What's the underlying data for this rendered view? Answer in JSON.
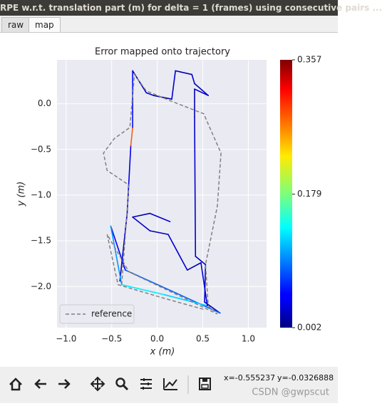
{
  "window": {
    "title": "RPE w.r.t. translation part (m) for delta = 1 (frames) using consecutive pairs ...",
    "tabs": [
      "raw",
      "map"
    ]
  },
  "chart_data": {
    "type": "line",
    "title": "Error mapped onto trajectory",
    "xlabel": "x (m)",
    "ylabel": "y (m)",
    "xlim": [
      -1.1,
      1.2
    ],
    "ylim": [
      -2.45,
      0.48
    ],
    "xticks": [
      {
        "value": -1.0,
        "label": "−1.0"
      },
      {
        "value": -0.5,
        "label": "−0.5"
      },
      {
        "value": 0.0,
        "label": "0.0"
      },
      0.5,
      {
        "value": 1.0,
        "label": "1.0"
      }
    ],
    "yticks": [
      {
        "value": 0.0,
        "label": "0.0"
      },
      {
        "value": -0.5,
        "label": "−0.5"
      },
      {
        "value": -1.0,
        "label": "−1.0"
      },
      {
        "value": -1.5,
        "label": "−1.5"
      },
      {
        "value": -2.0,
        "label": "−2.0"
      }
    ],
    "grid": true,
    "legend": "lower left",
    "series": [
      {
        "name": "reference",
        "color": "#808080",
        "linestyle": "dashed",
        "x": [
          -0.39,
          -0.31,
          -0.55,
          -0.59,
          -0.47,
          -0.3,
          -0.25,
          -0.12,
          0.2,
          0.51,
          0.7,
          0.66,
          0.53,
          0.56,
          0.66,
          -0.31,
          -0.55,
          -0.43,
          0.08,
          0.51
        ],
        "y": [
          -1.98,
          -0.89,
          -0.73,
          -0.54,
          -0.38,
          -0.26,
          0.32,
          0.14,
          0.01,
          -0.11,
          -0.54,
          -1.12,
          -1.76,
          -2.21,
          -2.3,
          -1.84,
          -1.43,
          -1.98,
          -2.13,
          -2.25
        ]
      },
      {
        "colormap": "jet",
        "x": [
          -0.41,
          -0.33,
          -0.29,
          -0.27,
          -0.27,
          -0.12,
          -0.04,
          0.16,
          0.2,
          0.38,
          0.41,
          0.56,
          0.41,
          0.41,
          0.42,
          0.53,
          0.52,
          0.69,
          -0.35,
          -0.51,
          -0.39,
          0.08,
          0.55,
          0.48,
          0.33,
          0.12,
          -0.08,
          -0.27,
          -0.08,
          0.14
        ],
        "y": [
          -1.94,
          -1.2,
          -0.46,
          -0.26,
          0.36,
          0.12,
          0.09,
          0.05,
          0.36,
          0.32,
          0.22,
          0.09,
          0.16,
          -0.15,
          -1.67,
          -1.76,
          -2.17,
          -2.29,
          -1.82,
          -1.34,
          -1.98,
          -2.09,
          -2.21,
          -1.74,
          -1.82,
          -1.43,
          -1.39,
          -1.24,
          -1.2,
          -1.29
        ],
        "error": [
          0.03,
          0.04,
          0.28,
          0.05,
          0.02,
          0.03,
          0.02,
          0.03,
          0.02,
          0.03,
          0.02,
          0.03,
          0.02,
          0.03,
          0.02,
          0.03,
          0.02,
          0.08,
          0.04,
          0.1,
          0.13,
          0.12,
          0.03,
          0.02,
          0.03,
          0.02,
          0.03,
          0.02,
          0.03,
          0.02
        ]
      }
    ],
    "colorbar": {
      "clim": [
        0.002,
        0.357
      ],
      "ticks": [
        0.002,
        0.179,
        0.357
      ]
    }
  },
  "toolbar": {
    "x_coord": "x=-0.555237",
    "y_coord": "y=-0.0326888"
  },
  "watermark": "CSDN @gwpscut"
}
